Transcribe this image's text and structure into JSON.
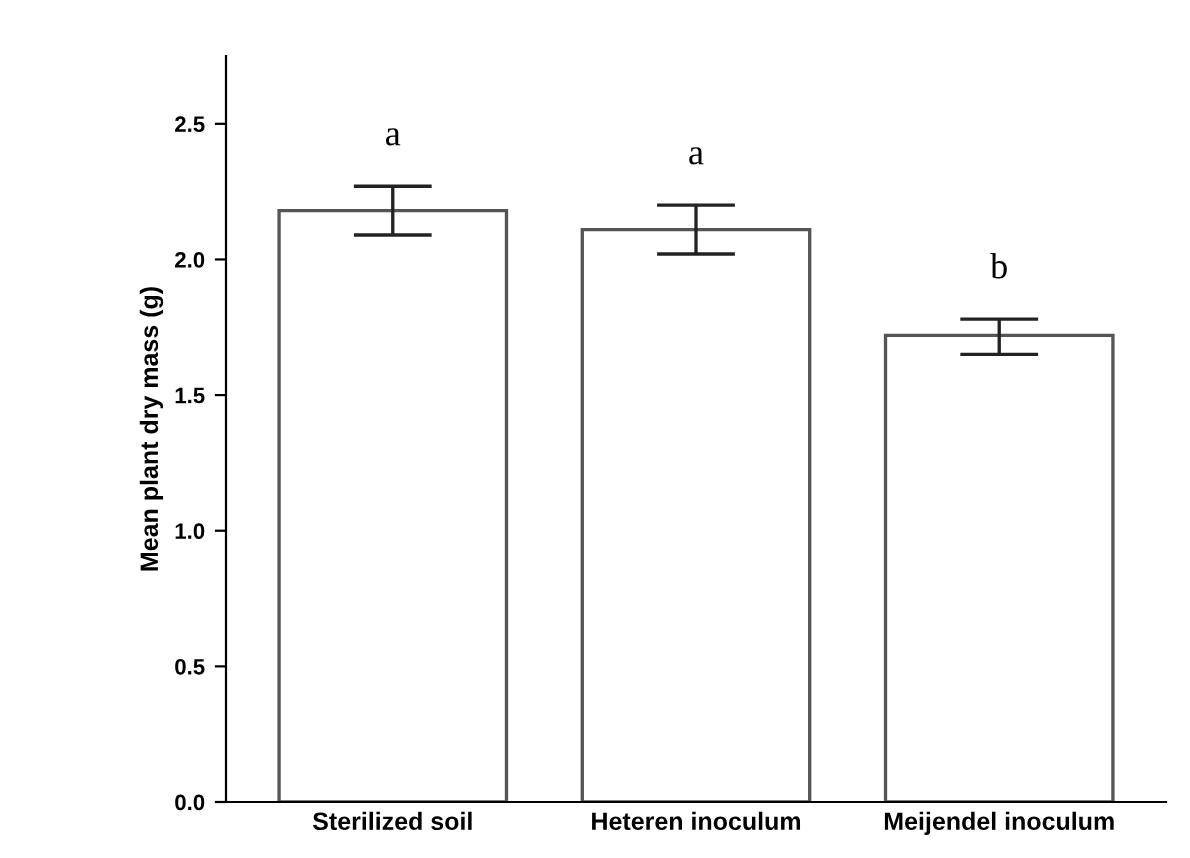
{
  "chart_data": {
    "type": "bar",
    "ylabel": "Mean plant dry mass (g)",
    "categories": [
      "Sterilized soil",
      "Heteren inoculum",
      "Meijendel inoculum"
    ],
    "values": [
      2.18,
      2.11,
      1.72
    ],
    "color": "#ffffff",
    "errors": [
      [
        2.09,
        2.27
      ],
      [
        2.02,
        2.2
      ],
      [
        1.65,
        1.78
      ]
    ],
    "ylim": [
      0,
      2.75
    ],
    "yticks": [
      {
        "value": 0,
        "label": "0.0"
      },
      {
        "value": 0.5,
        "label": "0.5"
      },
      {
        "value": 1,
        "label": "1.0"
      },
      {
        "value": 1.5,
        "label": "1.5"
      },
      {
        "value": 2,
        "label": "2.0"
      },
      {
        "value": 2.5,
        "label": "2.5"
      }
    ],
    "grid": false,
    "annotations": [
      "a",
      "a",
      "b"
    ]
  }
}
